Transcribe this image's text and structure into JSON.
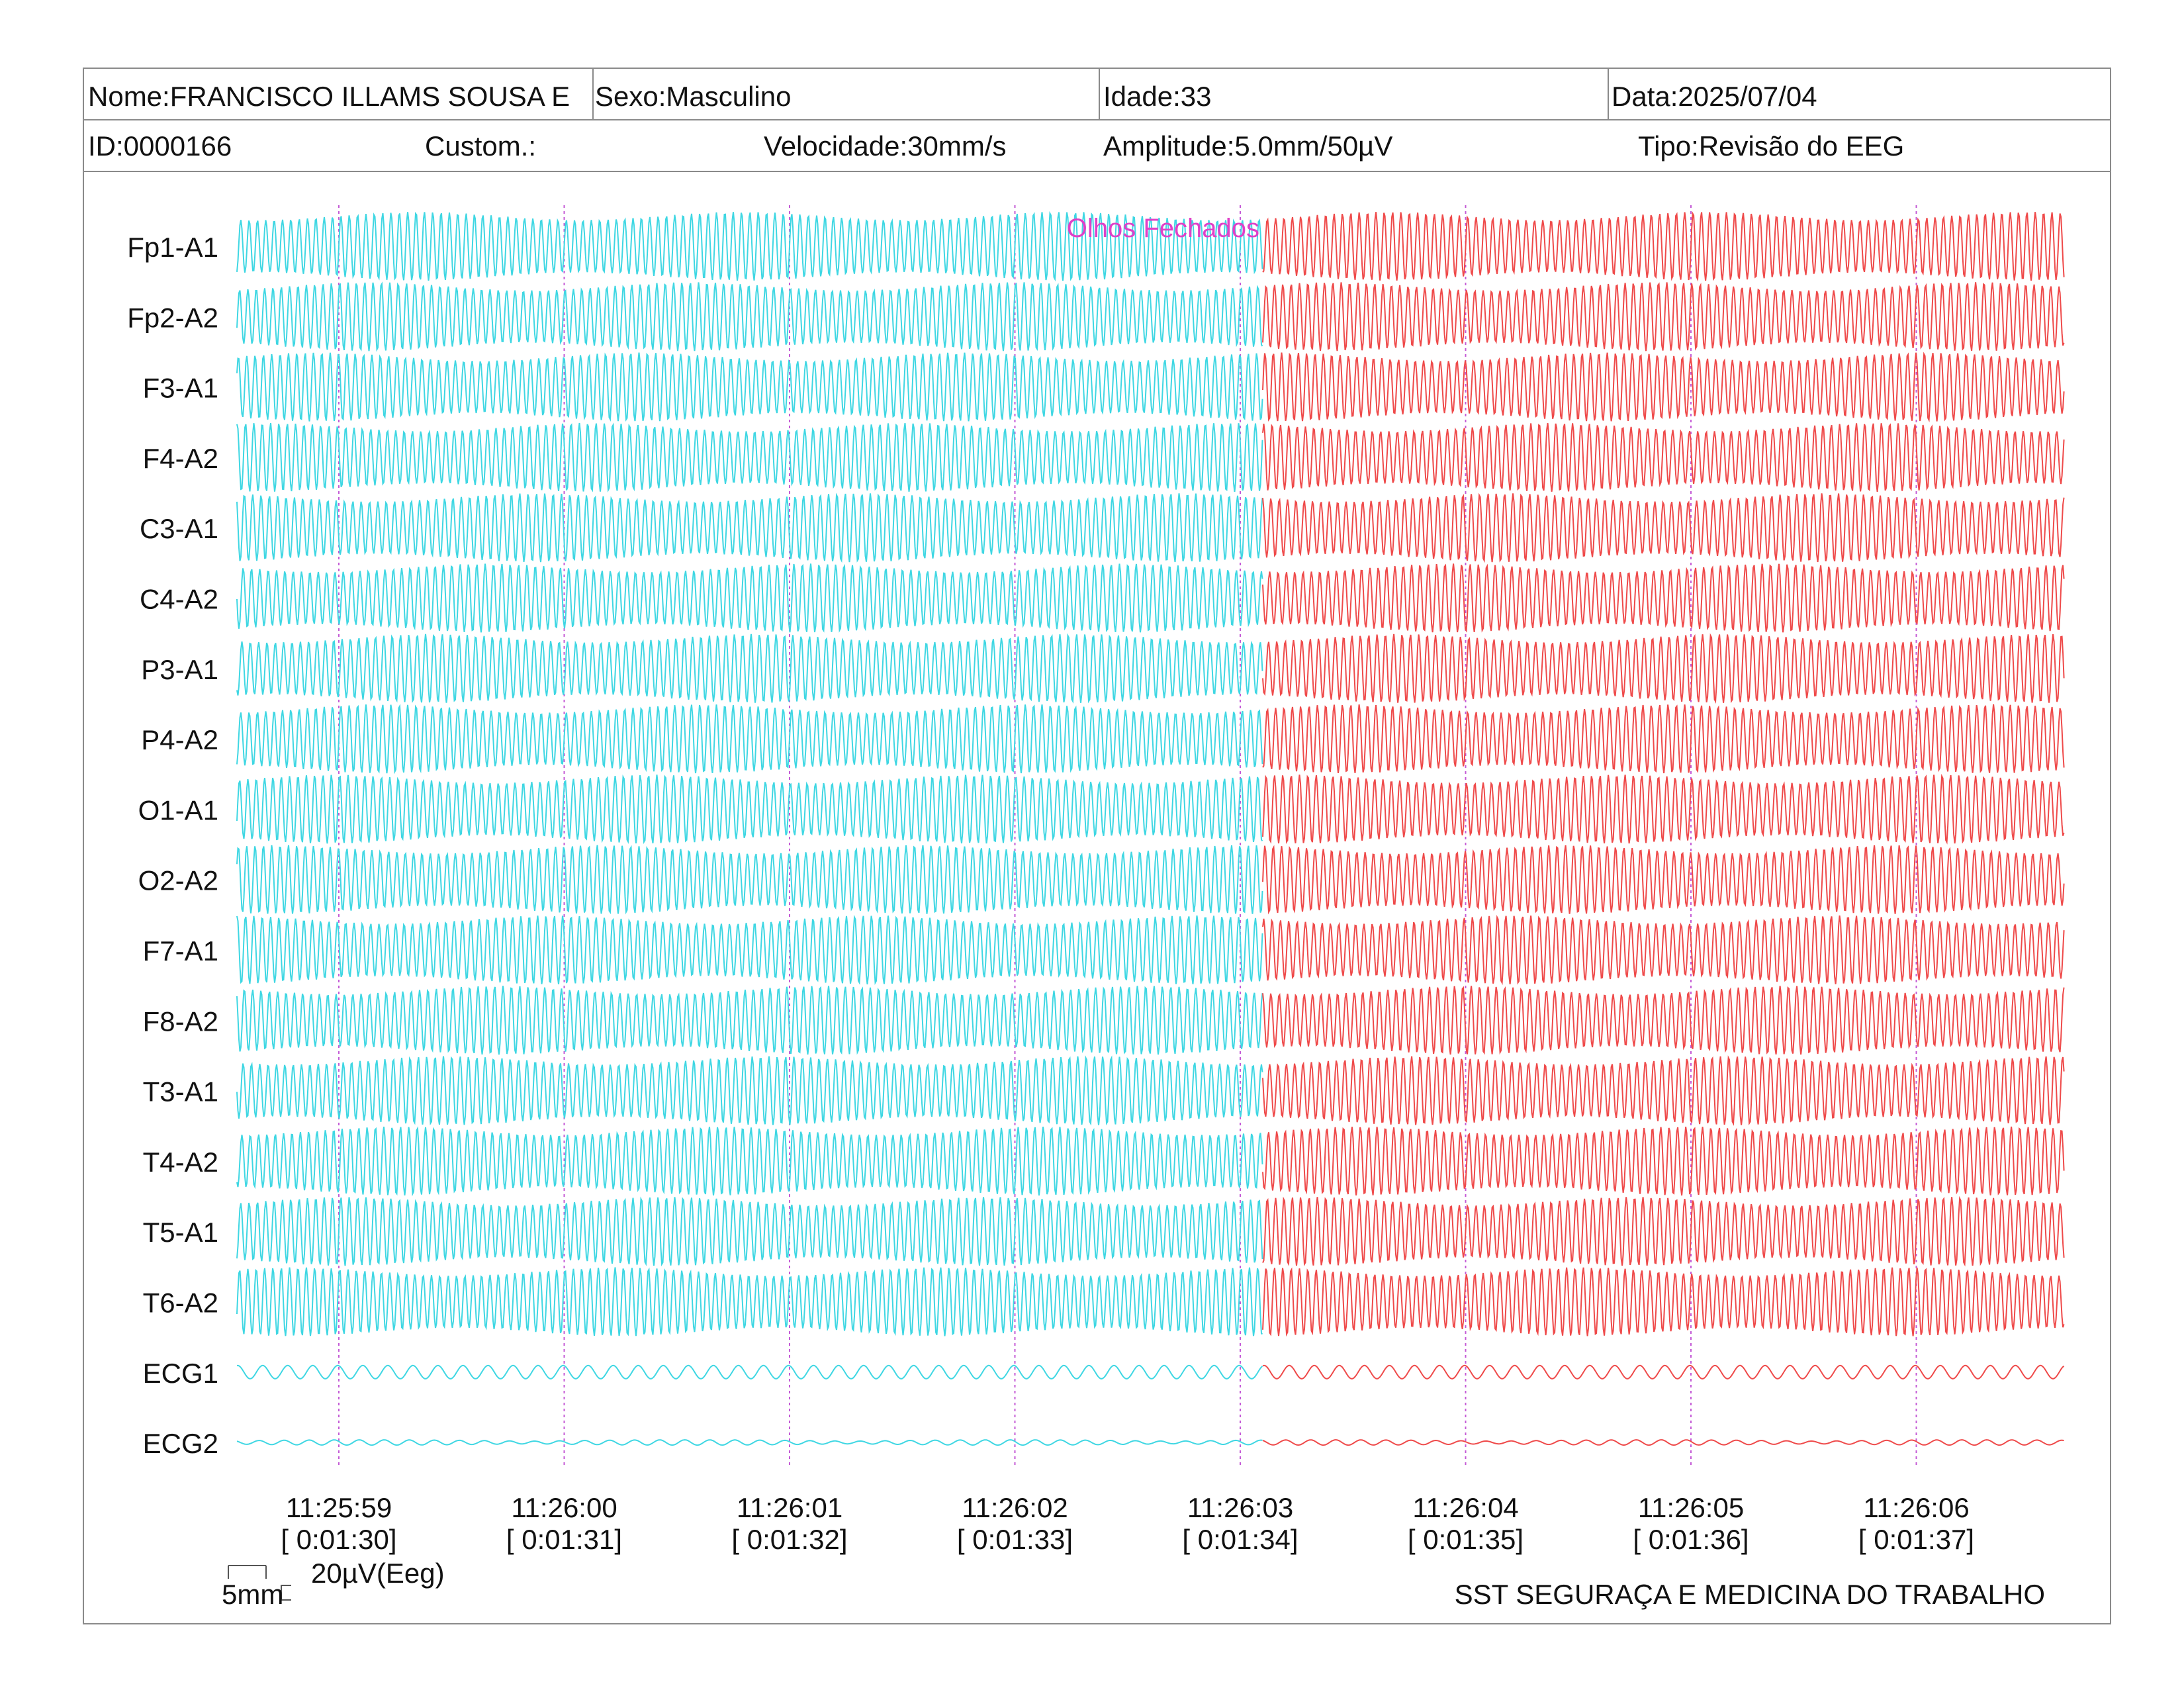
{
  "header": {
    "nome": "Nome:FRANCISCO ILLAMS SOUSA E",
    "sexo": "Sexo:Masculino",
    "idade": "Idade:33",
    "data": "Data:2025/07/04",
    "id": "ID:0000166",
    "custom": "Custom.:",
    "velocidade": "Velocidade:30mm/s",
    "amplitude": "Amplitude:5.0mm/50µV",
    "tipo": "Tipo:Revisão do EEG"
  },
  "colors": {
    "before": "#3fd7e3",
    "after": "#ef4a4a",
    "annotation": "#e040c8",
    "marker": "#c45ad6"
  },
  "scale": {
    "time_label": "5mm",
    "amplitude_label": "20µV(Eeg)"
  },
  "footer": "SST SEGURAÇA E MEDICINA DO TRABALHO",
  "chart_data": {
    "type": "line",
    "channels": [
      "Fp1-A1",
      "Fp2-A2",
      "F3-A1",
      "F4-A2",
      "C3-A1",
      "C4-A2",
      "P3-A1",
      "P4-A2",
      "O1-A1",
      "O2-A2",
      "F7-A1",
      "F8-A2",
      "T3-A1",
      "T4-A2",
      "T5-A1",
      "T6-A2",
      "ECG1",
      "ECG2"
    ],
    "time_ticks": [
      {
        "clock": "11:25:59",
        "elapsed": "[ 0:01:30]"
      },
      {
        "clock": "11:26:00",
        "elapsed": "[ 0:01:31]"
      },
      {
        "clock": "11:26:01",
        "elapsed": "[ 0:01:32]"
      },
      {
        "clock": "11:26:02",
        "elapsed": "[ 0:01:33]"
      },
      {
        "clock": "11:26:03",
        "elapsed": "[ 0:01:34]"
      },
      {
        "clock": "11:26:04",
        "elapsed": "[ 0:01:35]"
      },
      {
        "clock": "11:26:05",
        "elapsed": "[ 0:01:36]"
      },
      {
        "clock": "11:26:06",
        "elapsed": "[ 0:01:37]"
      }
    ],
    "time_range_s": [
      -0.45,
      7.65
    ],
    "event": {
      "label": "Olhos Fechados",
      "time_s": 4.1
    },
    "eeg_frequency_hz": 27,
    "ecg_frequency_hz": 9
  }
}
